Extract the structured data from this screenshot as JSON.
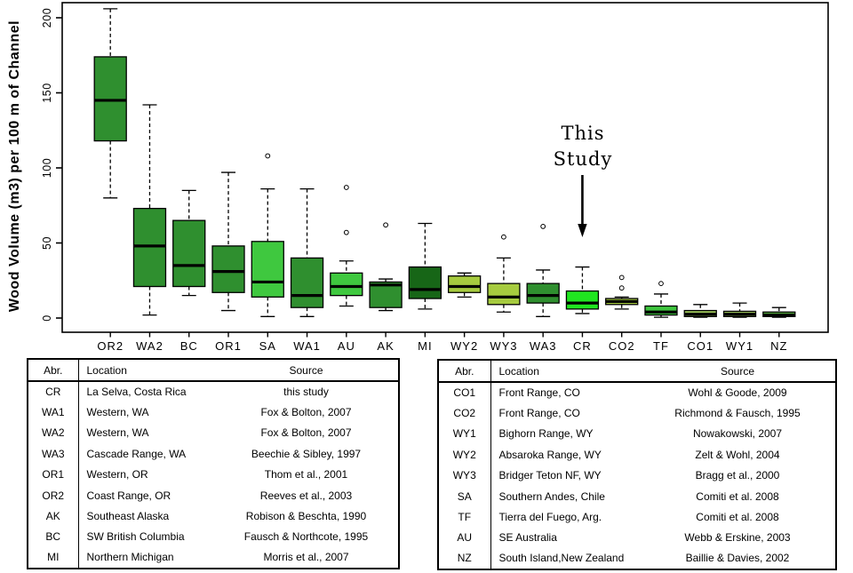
{
  "chart_data": {
    "type": "boxplot",
    "title": "",
    "xlabel": "",
    "ylabel": "Wood Volume (m3) per 100 m of Channel",
    "yticks": [
      0,
      50,
      100,
      150,
      200
    ],
    "ylim": [
      0,
      210
    ],
    "grid": false,
    "annotation": {
      "line1": "This",
      "line2": "Study",
      "target": "CR"
    },
    "groups": [
      {
        "label": "OR2",
        "lo": 80,
        "q1": 118,
        "med": 145,
        "q3": 174,
        "hi": 206,
        "outliers": [],
        "color": "#2f8f2f"
      },
      {
        "label": "WA2",
        "lo": 2,
        "q1": 21,
        "med": 48,
        "q3": 73,
        "hi": 142,
        "outliers": [],
        "color": "#2f8f2f"
      },
      {
        "label": "BC",
        "lo": 15,
        "q1": 21,
        "med": 35,
        "q3": 65,
        "hi": 85,
        "outliers": [],
        "color": "#2f8f2f"
      },
      {
        "label": "OR1",
        "lo": 5,
        "q1": 17,
        "med": 31,
        "q3": 48,
        "hi": 97,
        "outliers": [],
        "color": "#2f8f2f"
      },
      {
        "label": "SA",
        "lo": 1,
        "q1": 14,
        "med": 24,
        "q3": 51,
        "hi": 86,
        "outliers": [
          108
        ],
        "color": "#3fc83f"
      },
      {
        "label": "WA1",
        "lo": 1,
        "q1": 7,
        "med": 15,
        "q3": 40,
        "hi": 86,
        "outliers": [],
        "color": "#2f8f2f"
      },
      {
        "label": "AU",
        "lo": 8,
        "q1": 15,
        "med": 21,
        "q3": 30,
        "hi": 38,
        "outliers": [
          57,
          87
        ],
        "color": "#3fc83f"
      },
      {
        "label": "AK",
        "lo": 5,
        "q1": 7,
        "med": 22,
        "q3": 24,
        "hi": 26,
        "outliers": [
          62
        ],
        "color": "#2f8f2f"
      },
      {
        "label": "MI",
        "lo": 6,
        "q1": 13,
        "med": 19,
        "q3": 34,
        "hi": 63,
        "outliers": [],
        "color": "#176617"
      },
      {
        "label": "WY2",
        "lo": 14,
        "q1": 17,
        "med": 21,
        "q3": 28,
        "hi": 30,
        "outliers": [],
        "color": "#a6cb3f"
      },
      {
        "label": "WY3",
        "lo": 4,
        "q1": 9,
        "med": 14,
        "q3": 23,
        "hi": 40,
        "outliers": [
          54
        ],
        "color": "#a6cb3f"
      },
      {
        "label": "WA3",
        "lo": 1,
        "q1": 10,
        "med": 15,
        "q3": 23,
        "hi": 32,
        "outliers": [
          61
        ],
        "color": "#2f8f2f"
      },
      {
        "label": "CR",
        "lo": 3,
        "q1": 6,
        "med": 10,
        "q3": 18,
        "hi": 34,
        "outliers": [],
        "color": "#20e520"
      },
      {
        "label": "CO2",
        "lo": 6,
        "q1": 9,
        "med": 11,
        "q3": 13,
        "hi": 14,
        "outliers": [
          20,
          27
        ],
        "color": "#a6cb3f"
      },
      {
        "label": "TF",
        "lo": 0.5,
        "q1": 2,
        "med": 4,
        "q3": 8,
        "hi": 16,
        "outliers": [
          23
        ],
        "color": "#3ec43e"
      },
      {
        "label": "CO1",
        "lo": 0.5,
        "q1": 1,
        "med": 2.5,
        "q3": 5,
        "hi": 9,
        "outliers": [],
        "color": "#9cc45a"
      },
      {
        "label": "WY1",
        "lo": 0.5,
        "q1": 1,
        "med": 2.5,
        "q3": 4.5,
        "hi": 10,
        "outliers": [],
        "color": "#9cc45a"
      },
      {
        "label": "NZ",
        "lo": 0.5,
        "q1": 1,
        "med": 2,
        "q3": 4,
        "hi": 7,
        "outliers": [],
        "color": "#55ad3e"
      }
    ]
  },
  "tables": {
    "left": {
      "headers": [
        "Abr.",
        "Location",
        "Source"
      ],
      "rows": [
        [
          "CR",
          "La Selva, Costa Rica",
          "this study"
        ],
        [
          "WA1",
          "Western, WA",
          "Fox & Bolton, 2007"
        ],
        [
          "WA2",
          "Western, WA",
          "Fox & Bolton, 2007"
        ],
        [
          "WA3",
          "Cascade Range, WA",
          "Beechie & Sibley, 1997"
        ],
        [
          "OR1",
          "Western, OR",
          "Thom et al., 2001"
        ],
        [
          "OR2",
          "Coast Range, OR",
          "Reeves et al., 2003"
        ],
        [
          "AK",
          "Southeast Alaska",
          "Robison & Beschta, 1990"
        ],
        [
          "BC",
          "SW British Columbia",
          "Fausch & Northcote, 1995"
        ],
        [
          "MI",
          "Northern Michigan",
          "Morris et al., 2007"
        ]
      ]
    },
    "right": {
      "headers": [
        "Abr.",
        "Location",
        "Source"
      ],
      "rows": [
        [
          "CO1",
          "Front Range, CO",
          "Wohl & Goode, 2009"
        ],
        [
          "CO2",
          "Front Range, CO",
          "Richmond & Fausch, 1995"
        ],
        [
          "WY1",
          "Bighorn Range, WY",
          "Nowakowski, 2007"
        ],
        [
          "WY2",
          "Absaroka Range, WY",
          "Zelt & Wohl, 2004"
        ],
        [
          "WY3",
          "Bridger Teton NF, WY",
          "Bragg et al., 2000"
        ],
        [
          "SA",
          "Southern Andes, Chile",
          "Comiti et al. 2008"
        ],
        [
          "TF",
          "Tierra del Fuego, Arg.",
          "Comiti et al. 2008"
        ],
        [
          "AU",
          "SE Australia",
          "Webb & Erskine, 2003"
        ],
        [
          "NZ",
          "South Island,New Zealand",
          "Baillie & Davies, 2002"
        ]
      ]
    }
  }
}
